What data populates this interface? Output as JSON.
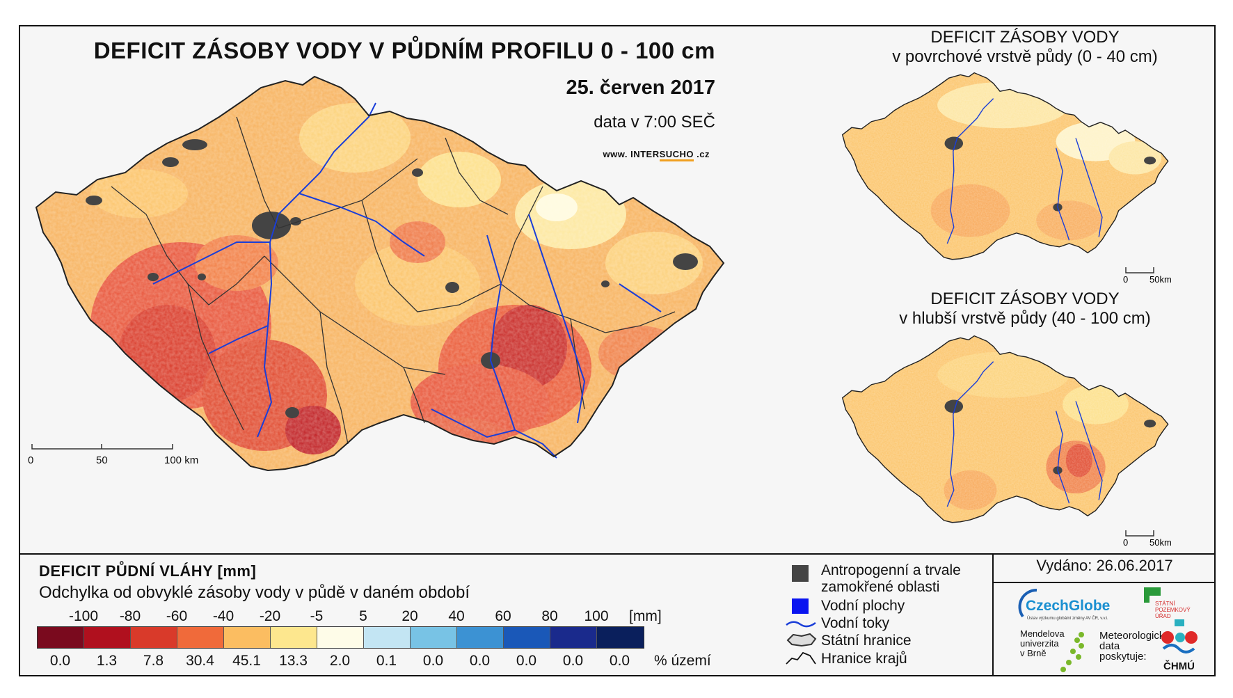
{
  "header": {
    "title": "DEFICIT ZÁSOBY VODY V PŮDNÍM PROFILU 0 - 100 cm",
    "date": "25. červen 2017",
    "data_time": "data v 7:00 SEČ",
    "site_prefix": "www. INTER",
    "site_hl": "SUCHO",
    "site_suffix": " .cz"
  },
  "main_map": {
    "scale_labels": [
      "0",
      "50",
      "100 km"
    ]
  },
  "mini_maps": [
    {
      "title_line1": "DEFICIT ZÁSOBY VODY",
      "title_line2": "v povrchové vrstvě půdy (0 - 40 cm)",
      "scale_labels": [
        "0",
        "50km"
      ]
    },
    {
      "title_line1": "DEFICIT ZÁSOBY VODY",
      "title_line2": "v hlubší vrstvě půdy (40 - 100 cm)",
      "scale_labels": [
        "0",
        "50km"
      ]
    }
  ],
  "legend": {
    "title": "DEFICIT PŮDNÍ VLÁHY [mm]",
    "subtitle": "Odchylka od obvyklé zásoby vody v půdě v daném období",
    "class_labels": [
      "-100",
      "-80",
      "-60",
      "-40",
      "-20",
      "-5",
      "5",
      "20",
      "40",
      "60",
      "80",
      "100"
    ],
    "unit_mm": "[mm]",
    "colors": [
      "#7a0a1e",
      "#b0101e",
      "#d93a2a",
      "#f06a3a",
      "#fbbd61",
      "#fde78e",
      "#fefce8",
      "#c3e5f3",
      "#78c3e5",
      "#3c92d3",
      "#1a58b8",
      "#1a2a8c",
      "#0a1f5c"
    ],
    "percentages": [
      "0.0",
      "1.3",
      "7.8",
      "30.4",
      "45.1",
      "13.3",
      "2.0",
      "0.1",
      "0.0",
      "0.0",
      "0.0",
      "0.0",
      "0.0"
    ],
    "unit_pct": "% území"
  },
  "map_legend": {
    "anthropogenic_line1": "Antropogenní a trvale",
    "anthropogenic_line2": "zamokřené oblasti",
    "water_bodies": "Vodní plochy",
    "rivers": "Vodní toky",
    "state_border": "Státní hranice",
    "region_border": "Hranice krajů"
  },
  "issued": "Vydáno: 26.06.2017",
  "logos": {
    "czechglobe": "CzechGlobe",
    "czechglobe_sub": "Ústav výzkumu globální změny AV ČR, v.v.i.",
    "spu_line1": "STÁTNÍ",
    "spu_line2": "POZEMKOVÝ",
    "spu_line3": "ÚŘAD",
    "mendel_line1": "Mendelova",
    "mendel_line2": "univerzita",
    "mendel_line3": "v Brně",
    "meteo_line1": "Meteorologická",
    "meteo_line2": "data",
    "meteo_line3": "poskytuje:",
    "chmu": "ČHMÚ"
  }
}
